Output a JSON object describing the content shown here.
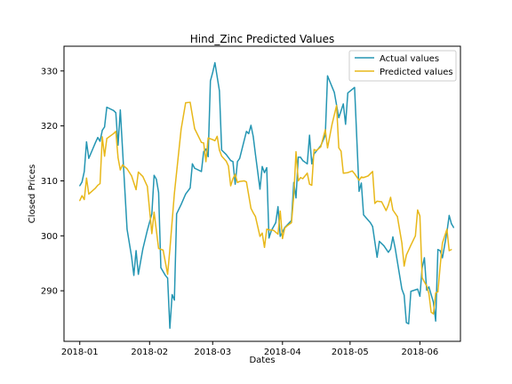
{
  "chart_data": {
    "type": "line",
    "title": "Hind_Zinc Predicted Values",
    "xlabel": "Dates",
    "ylabel": "Closed Prices",
    "xlim": [
      "2017-12-25",
      "2018-06-19"
    ],
    "ylim": [
      280.8,
      334.5
    ],
    "x_ticks": [
      {
        "date": "2018-01-01",
        "label": "2018-01"
      },
      {
        "date": "2018-02-01",
        "label": "2018-02"
      },
      {
        "date": "2018-03-01",
        "label": "2018-03"
      },
      {
        "date": "2018-04-01",
        "label": "2018-04"
      },
      {
        "date": "2018-05-01",
        "label": "2018-05"
      },
      {
        "date": "2018-06-01",
        "label": "2018-06"
      }
    ],
    "y_ticks": [
      290,
      300,
      310,
      320,
      330
    ],
    "legend_position": "upper right",
    "grid": false,
    "series": [
      {
        "name": "Actual values",
        "color": "#2596b3",
        "points": [
          [
            "2018-01-01",
            309.1
          ],
          [
            "2018-01-02",
            309.8
          ],
          [
            "2018-01-03",
            311.7
          ],
          [
            "2018-01-04",
            317.1
          ],
          [
            "2018-01-05",
            314.1
          ],
          [
            "2018-01-08",
            317.0
          ],
          [
            "2018-01-09",
            317.9
          ],
          [
            "2018-01-10",
            317.2
          ],
          [
            "2018-01-11",
            319.2
          ],
          [
            "2018-01-12",
            319.8
          ],
          [
            "2018-01-13",
            323.4
          ],
          [
            "2018-01-16",
            322.8
          ],
          [
            "2018-01-17",
            322.4
          ],
          [
            "2018-01-18",
            316.5
          ],
          [
            "2018-01-19",
            322.9
          ],
          [
            "2018-01-22",
            301.2
          ],
          [
            "2018-01-24",
            296.2
          ],
          [
            "2018-01-25",
            292.8
          ],
          [
            "2018-01-26",
            297.3
          ],
          [
            "2018-01-27",
            293.0
          ],
          [
            "2018-01-29",
            297.6
          ],
          [
            "2018-01-31",
            301.0
          ],
          [
            "2018-02-02",
            304.0
          ],
          [
            "2018-02-03",
            311.0
          ],
          [
            "2018-02-04",
            310.3
          ],
          [
            "2018-02-05",
            307.9
          ],
          [
            "2018-02-06",
            294.2
          ],
          [
            "2018-02-08",
            292.8
          ],
          [
            "2018-02-09",
            292.3
          ],
          [
            "2018-02-10",
            283.2
          ],
          [
            "2018-02-11",
            289.3
          ],
          [
            "2018-02-12",
            288.3
          ],
          [
            "2018-02-13",
            304.0
          ],
          [
            "2018-02-15",
            305.7
          ],
          [
            "2018-02-17",
            307.6
          ],
          [
            "2018-02-19",
            308.7
          ],
          [
            "2018-02-20",
            313.1
          ],
          [
            "2018-02-21",
            312.3
          ],
          [
            "2018-02-24",
            311.7
          ],
          [
            "2018-02-25",
            315.3
          ],
          [
            "2018-02-26",
            315.8
          ],
          [
            "2018-02-27",
            314.4
          ],
          [
            "2018-02-28",
            328.2
          ],
          [
            "2018-03-01",
            329.7
          ],
          [
            "2018-03-02",
            331.5
          ],
          [
            "2018-03-04",
            326.4
          ],
          [
            "2018-03-05",
            315.6
          ],
          [
            "2018-03-07",
            314.8
          ],
          [
            "2018-03-09",
            313.7
          ],
          [
            "2018-03-10",
            313.5
          ],
          [
            "2018-03-11",
            309.4
          ],
          [
            "2018-03-12",
            313.5
          ],
          [
            "2018-03-13",
            314.1
          ],
          [
            "2018-03-16",
            319.0
          ],
          [
            "2018-03-17",
            318.6
          ],
          [
            "2018-03-18",
            320.1
          ],
          [
            "2018-03-19",
            318.1
          ],
          [
            "2018-03-20",
            314.8
          ],
          [
            "2018-03-22",
            308.5
          ],
          [
            "2018-03-23",
            312.6
          ],
          [
            "2018-03-24",
            311.5
          ],
          [
            "2018-03-25",
            312.4
          ],
          [
            "2018-03-26",
            299.6
          ],
          [
            "2018-03-27",
            300.9
          ],
          [
            "2018-03-29",
            302.4
          ],
          [
            "2018-03-30",
            305.3
          ],
          [
            "2018-03-31",
            299.9
          ],
          [
            "2018-04-02",
            301.5
          ],
          [
            "2018-04-05",
            302.8
          ],
          [
            "2018-04-06",
            309.7
          ],
          [
            "2018-04-07",
            306.9
          ],
          [
            "2018-04-08",
            314.3
          ],
          [
            "2018-04-09",
            314.3
          ],
          [
            "2018-04-10",
            313.7
          ],
          [
            "2018-04-12",
            313.1
          ],
          [
            "2018-04-13",
            318.3
          ],
          [
            "2018-04-14",
            313.1
          ],
          [
            "2018-04-15",
            314.9
          ],
          [
            "2018-04-18",
            316.4
          ],
          [
            "2018-04-20",
            318.3
          ],
          [
            "2018-04-21",
            329.1
          ],
          [
            "2018-04-24",
            326.1
          ],
          [
            "2018-04-26",
            321.5
          ],
          [
            "2018-04-28",
            324.0
          ],
          [
            "2018-04-29",
            320.3
          ],
          [
            "2018-04-30",
            326.0
          ],
          [
            "2018-05-03",
            327.0
          ],
          [
            "2018-05-05",
            308.1
          ],
          [
            "2018-05-06",
            309.6
          ],
          [
            "2018-05-07",
            303.8
          ],
          [
            "2018-05-10",
            302.4
          ],
          [
            "2018-05-11",
            301.7
          ],
          [
            "2018-05-13",
            296.1
          ],
          [
            "2018-05-14",
            299.0
          ],
          [
            "2018-05-16",
            298.2
          ],
          [
            "2018-05-18",
            297.0
          ],
          [
            "2018-05-19",
            297.6
          ],
          [
            "2018-05-20",
            299.8
          ],
          [
            "2018-05-21",
            297.8
          ],
          [
            "2018-05-24",
            290.3
          ],
          [
            "2018-05-25",
            289.2
          ],
          [
            "2018-05-26",
            284.2
          ],
          [
            "2018-05-27",
            284.0
          ],
          [
            "2018-05-28",
            289.9
          ],
          [
            "2018-05-31",
            290.3
          ],
          [
            "2018-06-01",
            289.0
          ],
          [
            "2018-06-02",
            294.2
          ],
          [
            "2018-06-03",
            296.0
          ],
          [
            "2018-06-04",
            290.1
          ],
          [
            "2018-06-05",
            290.7
          ],
          [
            "2018-06-07",
            287.9
          ],
          [
            "2018-06-08",
            284.5
          ],
          [
            "2018-06-09",
            297.5
          ],
          [
            "2018-06-10",
            297.3
          ],
          [
            "2018-06-11",
            296.0
          ],
          [
            "2018-06-13",
            300.7
          ],
          [
            "2018-06-14",
            303.7
          ],
          [
            "2018-06-15",
            302.2
          ],
          [
            "2018-06-16",
            301.5
          ]
        ]
      },
      {
        "name": "Predicted values",
        "color": "#e8b81a",
        "points": [
          [
            "2018-01-01",
            306.4
          ],
          [
            "2018-01-02",
            307.3
          ],
          [
            "2018-01-03",
            306.6
          ],
          [
            "2018-01-04",
            310.5
          ],
          [
            "2018-01-05",
            307.6
          ],
          [
            "2018-01-08",
            308.7
          ],
          [
            "2018-01-09",
            309.2
          ],
          [
            "2018-01-10",
            309.5
          ],
          [
            "2018-01-11",
            318.0
          ],
          [
            "2018-01-12",
            314.5
          ],
          [
            "2018-01-13",
            317.7
          ],
          [
            "2018-01-16",
            318.6
          ],
          [
            "2018-01-17",
            319.0
          ],
          [
            "2018-01-18",
            314.2
          ],
          [
            "2018-01-19",
            312.0
          ],
          [
            "2018-01-20",
            312.9
          ],
          [
            "2018-01-22",
            312.2
          ],
          [
            "2018-01-24",
            310.9
          ],
          [
            "2018-01-26",
            308.4
          ],
          [
            "2018-01-27",
            311.6
          ],
          [
            "2018-01-29",
            310.8
          ],
          [
            "2018-01-31",
            309.0
          ],
          [
            "2018-02-02",
            300.4
          ],
          [
            "2018-02-03",
            304.3
          ],
          [
            "2018-02-05",
            297.7
          ],
          [
            "2018-02-07",
            297.4
          ],
          [
            "2018-02-09",
            293.0
          ],
          [
            "2018-02-10",
            297.5
          ],
          [
            "2018-02-12",
            307.7
          ],
          [
            "2018-02-15",
            319.4
          ],
          [
            "2018-02-17",
            324.2
          ],
          [
            "2018-02-19",
            324.3
          ],
          [
            "2018-02-21",
            319.5
          ],
          [
            "2018-02-24",
            317.0
          ],
          [
            "2018-02-25",
            316.9
          ],
          [
            "2018-02-26",
            313.5
          ],
          [
            "2018-02-27",
            317.8
          ],
          [
            "2018-03-01",
            317.5
          ],
          [
            "2018-03-02",
            317.3
          ],
          [
            "2018-03-03",
            318.1
          ],
          [
            "2018-03-04",
            315.6
          ],
          [
            "2018-03-05",
            314.5
          ],
          [
            "2018-03-07",
            313.6
          ],
          [
            "2018-03-08",
            312.7
          ],
          [
            "2018-03-09",
            309.1
          ],
          [
            "2018-03-10",
            310.4
          ],
          [
            "2018-03-11",
            311.2
          ],
          [
            "2018-03-12",
            309.7
          ],
          [
            "2018-03-13",
            309.9
          ],
          [
            "2018-03-15",
            310.0
          ],
          [
            "2018-03-16",
            309.8
          ],
          [
            "2018-03-18",
            305.0
          ],
          [
            "2018-03-19",
            304.2
          ],
          [
            "2018-03-20",
            303.5
          ],
          [
            "2018-03-22",
            299.9
          ],
          [
            "2018-03-23",
            300.5
          ],
          [
            "2018-03-24",
            297.9
          ],
          [
            "2018-03-25",
            301.2
          ],
          [
            "2018-03-26",
            301.1
          ],
          [
            "2018-03-28",
            301.0
          ],
          [
            "2018-03-30",
            300.3
          ],
          [
            "2018-03-31",
            304.5
          ],
          [
            "2018-04-01",
            299.5
          ],
          [
            "2018-04-02",
            301.4
          ],
          [
            "2018-04-03",
            301.8
          ],
          [
            "2018-04-05",
            302.4
          ],
          [
            "2018-04-06",
            307.3
          ],
          [
            "2018-04-07",
            315.3
          ],
          [
            "2018-04-08",
            310.0
          ],
          [
            "2018-04-09",
            310.6
          ],
          [
            "2018-04-10",
            310.4
          ],
          [
            "2018-04-12",
            311.4
          ],
          [
            "2018-04-13",
            309.4
          ],
          [
            "2018-04-14",
            309.2
          ],
          [
            "2018-04-15",
            315.7
          ],
          [
            "2018-04-16",
            315.5
          ],
          [
            "2018-04-18",
            316.2
          ],
          [
            "2018-04-20",
            319.3
          ],
          [
            "2018-04-21",
            316.0
          ],
          [
            "2018-04-23",
            320.3
          ],
          [
            "2018-04-25",
            323.7
          ],
          [
            "2018-04-26",
            316.0
          ],
          [
            "2018-04-27",
            315.4
          ],
          [
            "2018-04-28",
            311.4
          ],
          [
            "2018-04-30",
            311.5
          ],
          [
            "2018-05-02",
            311.8
          ],
          [
            "2018-05-03",
            311.3
          ],
          [
            "2018-05-05",
            310.1
          ],
          [
            "2018-05-06",
            310.7
          ],
          [
            "2018-05-07",
            310.6
          ],
          [
            "2018-05-09",
            310.9
          ],
          [
            "2018-05-11",
            311.7
          ],
          [
            "2018-05-12",
            305.9
          ],
          [
            "2018-05-13",
            306.3
          ],
          [
            "2018-05-15",
            306.2
          ],
          [
            "2018-05-17",
            304.6
          ],
          [
            "2018-05-18",
            305.6
          ],
          [
            "2018-05-19",
            307.0
          ],
          [
            "2018-05-20",
            304.7
          ],
          [
            "2018-05-22",
            303.5
          ],
          [
            "2018-05-24",
            298.7
          ],
          [
            "2018-05-25",
            294.5
          ],
          [
            "2018-05-26",
            296.5
          ],
          [
            "2018-05-28",
            298.3
          ],
          [
            "2018-05-30",
            300.0
          ],
          [
            "2018-05-31",
            304.7
          ],
          [
            "2018-06-01",
            303.6
          ],
          [
            "2018-06-02",
            292.4
          ],
          [
            "2018-06-03",
            291.6
          ],
          [
            "2018-06-04",
            290.9
          ],
          [
            "2018-06-05",
            289.5
          ],
          [
            "2018-06-06",
            286.1
          ],
          [
            "2018-06-07",
            285.8
          ],
          [
            "2018-06-08",
            289.6
          ],
          [
            "2018-06-09",
            289.8
          ],
          [
            "2018-06-10",
            294.5
          ],
          [
            "2018-06-11",
            298.7
          ],
          [
            "2018-06-13",
            301.2
          ],
          [
            "2018-06-14",
            297.3
          ],
          [
            "2018-06-15",
            297.5
          ]
        ]
      }
    ]
  }
}
